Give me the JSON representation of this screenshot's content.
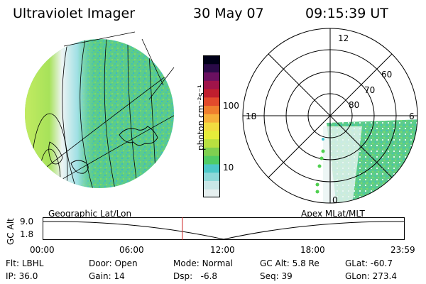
{
  "header": {
    "title": "Ultraviolet Imager",
    "date": "30 May 07",
    "time": "09:15:39 UT"
  },
  "colorbar": {
    "label": "photon cm⁻²s⁻¹",
    "ticks": [
      "100",
      "10"
    ],
    "scale": "log",
    "colors": [
      "#e6f0f0",
      "#c8e6e6",
      "#8ed8d8",
      "#4cc8c8",
      "#50cc66",
      "#7fd050",
      "#b8e040",
      "#e6ec3a",
      "#f2dc40",
      "#f6b03a",
      "#ef7f2e",
      "#e24a2c",
      "#c01e2e",
      "#a0144a",
      "#6a1060",
      "#2a0a48",
      "#000018"
    ]
  },
  "panels": {
    "left_caption": "Geographic Lat/Lon",
    "right_caption": "Apex MLat/MLT"
  },
  "polar": {
    "mlt_labels": [
      "12",
      "18",
      "6",
      "0"
    ],
    "lat_labels": [
      "60",
      "70",
      "80"
    ]
  },
  "altitude_plot": {
    "ylabel": "GC Alt",
    "yticks": [
      "9.0",
      "1.8"
    ],
    "xticks": [
      "00:00",
      "06:00",
      "12:00",
      "18:00",
      "23:59"
    ],
    "marker_time_fraction": 0.386
  },
  "info": {
    "row1": [
      {
        "label": "Flt:",
        "value": "LBHL"
      },
      {
        "label": "Door:",
        "value": "Open"
      },
      {
        "label": "Mode:",
        "value": "Normal"
      },
      {
        "label": "GC Alt:",
        "value": "5.8 Re"
      },
      {
        "label": "GLat:",
        "value": "-60.7"
      }
    ],
    "row2": [
      {
        "label": "IP:",
        "value": "36.0"
      },
      {
        "label": "Gain:",
        "value": "14"
      },
      {
        "label": "Dsp:",
        "value": "-6.8"
      },
      {
        "label": "Seq:",
        "value": "39"
      },
      {
        "label": "GLon:",
        "value": "273.4"
      }
    ]
  }
}
